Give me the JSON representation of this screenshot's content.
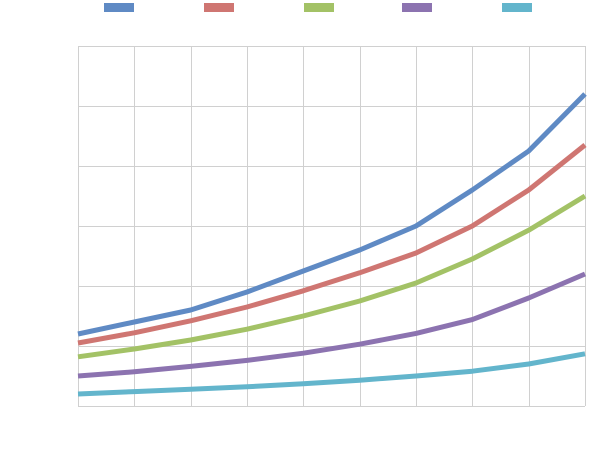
{
  "chart_data": {
    "type": "line",
    "title": "",
    "xlabel": "",
    "ylabel": "",
    "grid": true,
    "legend_position": "top",
    "x": [
      0,
      1,
      2,
      3,
      4,
      5,
      6,
      7,
      8,
      9
    ],
    "xlim": [
      0,
      9
    ],
    "ylim": [
      0,
      6
    ],
    "series": [
      {
        "color": "#5f8ac4",
        "values": [
          1.2,
          1.4,
          1.6,
          1.9,
          2.25,
          2.6,
          3.0,
          3.6,
          4.25,
          5.2
        ]
      },
      {
        "color": "#cf7672",
        "values": [
          1.05,
          1.22,
          1.42,
          1.65,
          1.92,
          2.22,
          2.55,
          3.0,
          3.6,
          4.35
        ]
      },
      {
        "color": "#a3c266",
        "values": [
          0.82,
          0.95,
          1.1,
          1.28,
          1.5,
          1.75,
          2.05,
          2.45,
          2.93,
          3.5
        ]
      },
      {
        "color": "#8c73b0",
        "values": [
          0.5,
          0.57,
          0.66,
          0.76,
          0.88,
          1.03,
          1.21,
          1.44,
          1.8,
          2.2
        ]
      },
      {
        "color": "#63b5cc",
        "values": [
          0.2,
          0.24,
          0.28,
          0.32,
          0.37,
          0.43,
          0.5,
          0.58,
          0.7,
          0.87
        ]
      }
    ]
  }
}
